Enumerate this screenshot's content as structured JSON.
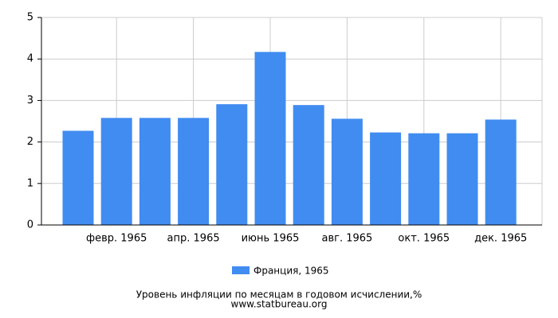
{
  "chart_data": {
    "type": "bar",
    "title": "Уровень инфляции по месяцам в годовом исчислении,%",
    "subtitle": "www.statbureau.org",
    "categories": [
      null,
      "февр. 1965",
      null,
      "апр. 1965",
      null,
      "июнь 1965",
      null,
      "авг. 1965",
      null,
      "окт. 1965",
      null,
      "дек. 1965"
    ],
    "series": [
      {
        "name": "Франция, 1965",
        "color": "#418cf0",
        "values": [
          2.27,
          2.58,
          2.58,
          2.58,
          2.91,
          4.17,
          2.89,
          2.56,
          2.23,
          2.21,
          2.21,
          2.54
        ]
      }
    ],
    "ylim": [
      0,
      5
    ],
    "yticks": [
      0,
      1,
      2,
      3,
      4,
      5
    ],
    "grid": true
  }
}
